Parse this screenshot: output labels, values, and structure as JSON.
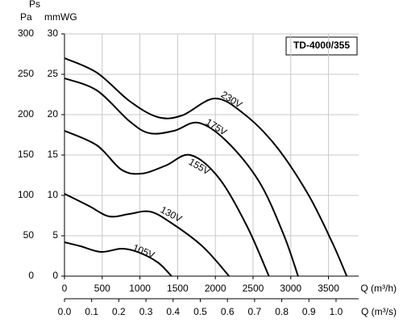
{
  "chart_data": {
    "type": "line",
    "y_title": "Ps",
    "y_unit": "Pa",
    "y2_unit": "mmWG",
    "x_title": "Q (m³/h)",
    "x2_title": "Q (m³/s)",
    "model": "TD-4000/355",
    "xlim": [
      0,
      3900
    ],
    "xticks": [
      0,
      500,
      1000,
      1500,
      2000,
      2500,
      3000,
      3500
    ],
    "x2lim": [
      0,
      1.0833
    ],
    "x2ticks": [
      {
        "value": 0,
        "label": "0.0"
      },
      0.1,
      0.2,
      0.3,
      0.4,
      0.5,
      0.6,
      0.7,
      0.8,
      0.9,
      {
        "value": 1,
        "label": "1.0"
      }
    ],
    "ylim": [
      0,
      300
    ],
    "yticks": [
      0,
      50,
      100,
      150,
      200,
      250,
      300
    ],
    "y2lim": [
      0,
      30
    ],
    "y2ticks": [
      0,
      5,
      10,
      15,
      20,
      25,
      30
    ],
    "grid": true,
    "series": [
      {
        "name": "230V",
        "color": "#000000",
        "x": [
          0,
          430,
          860,
          1236,
          1559,
          1989,
          2365,
          2796,
          3226,
          3548,
          3742
        ],
        "values": [
          270,
          252,
          217,
          197,
          199,
          220,
          202,
          162,
          102,
          42,
          0
        ]
      },
      {
        "name": "175V",
        "color": "#000000",
        "x": [
          0,
          430,
          860,
          1129,
          1452,
          1774,
          2150,
          2581,
          2903,
          3097
        ],
        "values": [
          245,
          230,
          192,
          177,
          180,
          190,
          167,
          117,
          52,
          0
        ]
      },
      {
        "name": "155V",
        "color": "#000000",
        "x": [
          0,
          430,
          753,
          1022,
          1344,
          1667,
          2043,
          2419,
          2710
        ],
        "values": [
          180,
          162,
          132,
          127,
          137,
          150,
          122,
          62,
          0
        ]
      },
      {
        "name": "130V",
        "color": "#000000",
        "x": [
          0,
          323,
          591,
          860,
          1129,
          1398,
          1828,
          2183
        ],
        "values": [
          102,
          87,
          74,
          77,
          80,
          67,
          37,
          0
        ]
      },
      {
        "name": "105V",
        "color": "#000000",
        "x": [
          0,
          215,
          484,
          753,
          968,
          1237,
          1419
        ],
        "values": [
          42,
          37,
          30,
          34,
          30,
          17,
          0
        ]
      }
    ]
  }
}
